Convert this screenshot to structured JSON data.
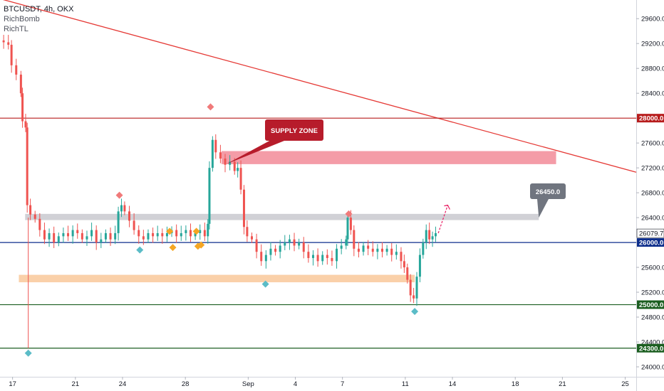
{
  "legend": {
    "symbol": "BTCUSDT, 4h, OKX",
    "indicators": [
      "RichBomb",
      "RichTL"
    ]
  },
  "chart_data": {
    "type": "candlestick",
    "y_ticks": [
      29600,
      29200,
      28800,
      28400,
      28000,
      27600,
      27200,
      26800,
      26400,
      26000,
      25600,
      25200,
      24800,
      24400,
      24000
    ],
    "y_tick_labels": [
      "29600.0",
      "29200.0",
      "28800.0",
      "28400.0",
      "28000.0",
      "27600.0",
      "27200.0",
      "26800.0",
      "26400.0",
      "26000.0",
      "25600.0",
      "25200.0",
      "24800.0",
      "24400.0",
      "24000.0"
    ],
    "ylim": [
      23840,
      29900
    ],
    "x_ticks": [
      {
        "label": "17",
        "day": 17
      },
      {
        "label": "21",
        "day": 21
      },
      {
        "label": "24",
        "day": 24
      },
      {
        "label": "28",
        "day": 28
      },
      {
        "label": "Sep",
        "day": 32
      },
      {
        "label": "4",
        "day": 35
      },
      {
        "label": "7",
        "day": 38
      },
      {
        "label": "11",
        "day": 42
      },
      {
        "label": "14",
        "day": 45
      },
      {
        "label": "18",
        "day": 49
      },
      {
        "label": "21",
        "day": 52
      },
      {
        "label": "25",
        "day": 56
      }
    ],
    "xlim": [
      16.2,
      56.7
    ],
    "horizontal_levels": [
      {
        "price": 28000,
        "label": "28000.0",
        "color": "#b71c1c"
      },
      {
        "price": 26000,
        "label": "26000.0",
        "color": "#0d2e8c"
      },
      {
        "price": 25000,
        "label": "25000.0",
        "color": "#1b5e20"
      },
      {
        "price": 24300,
        "label": "24300.0",
        "color": "#1b5e20"
      }
    ],
    "current_price": {
      "price": 26079.7,
      "label": "26079.7"
    },
    "trendline": {
      "from": {
        "day": 16.2,
        "price": 29920
      },
      "to": {
        "day": 56.7,
        "price": 27130
      },
      "color": "#e53935"
    },
    "zones": [
      {
        "name": "supply",
        "day_from": 30.3,
        "day_to": 51.6,
        "price_from": 27260,
        "price_to": 27470,
        "color": "#f28b98"
      },
      {
        "name": "resistance",
        "day_from": 17.8,
        "day_to": 50.5,
        "price_from": 26360,
        "price_to": 26460,
        "color": "#c9c9cf"
      },
      {
        "name": "support",
        "day_from": 17.4,
        "day_to": 42.6,
        "price_from": 25360,
        "price_to": 25480,
        "color": "#f9c89a"
      }
    ],
    "annotations": [
      {
        "text": "SUPPLY ZONE",
        "color": "#b71c2b",
        "text_color": "#ffffff"
      },
      {
        "text": "26450.0",
        "color": "#70757f",
        "text_color": "#ffffff"
      }
    ],
    "close_path": [
      [
        16.2,
        29250
      ],
      [
        16.5,
        29220
      ],
      [
        16.8,
        29180
      ],
      [
        17.0,
        28850
      ],
      [
        17.3,
        28700
      ],
      [
        17.6,
        28400
      ],
      [
        17.7,
        27950
      ],
      [
        17.9,
        27850
      ],
      [
        18.0,
        26600
      ],
      [
        18.2,
        26450
      ],
      [
        18.5,
        26380
      ],
      [
        18.8,
        26200
      ],
      [
        19.1,
        26050
      ],
      [
        19.4,
        26150
      ],
      [
        19.7,
        26000
      ],
      [
        20.0,
        26100
      ],
      [
        20.3,
        26150
      ],
      [
        20.6,
        26100
      ],
      [
        20.9,
        26200
      ],
      [
        21.2,
        26150
      ],
      [
        21.5,
        26050
      ],
      [
        21.8,
        26100
      ],
      [
        22.1,
        26200
      ],
      [
        22.4,
        26000
      ],
      [
        22.7,
        26050
      ],
      [
        23.0,
        26150
      ],
      [
        23.3,
        26050
      ],
      [
        23.6,
        26150
      ],
      [
        23.8,
        26500
      ],
      [
        24.0,
        26600
      ],
      [
        24.2,
        26500
      ],
      [
        24.5,
        26350
      ],
      [
        24.8,
        26200
      ],
      [
        25.1,
        26100
      ],
      [
        25.4,
        26050
      ],
      [
        25.7,
        26150
      ],
      [
        26.0,
        26100
      ],
      [
        26.3,
        26150
      ],
      [
        26.6,
        26100
      ],
      [
        26.9,
        26150
      ],
      [
        27.2,
        26200
      ],
      [
        27.5,
        26100
      ],
      [
        27.8,
        26150
      ],
      [
        28.1,
        26200
      ],
      [
        28.4,
        26100
      ],
      [
        28.7,
        26150
      ],
      [
        29.0,
        26200
      ],
      [
        29.3,
        26100
      ],
      [
        29.5,
        26300
      ],
      [
        29.6,
        27200
      ],
      [
        29.8,
        27650
      ],
      [
        30.0,
        27450
      ],
      [
        30.3,
        27350
      ],
      [
        30.6,
        27250
      ],
      [
        30.9,
        27300
      ],
      [
        31.2,
        27150
      ],
      [
        31.4,
        27200
      ],
      [
        31.6,
        26850
      ],
      [
        31.8,
        26250
      ],
      [
        32.0,
        26100
      ],
      [
        32.3,
        26050
      ],
      [
        32.6,
        25850
      ],
      [
        32.9,
        25700
      ],
      [
        33.2,
        25800
      ],
      [
        33.5,
        25900
      ],
      [
        33.8,
        25850
      ],
      [
        34.1,
        25950
      ],
      [
        34.4,
        26000
      ],
      [
        34.7,
        26050
      ],
      [
        35.0,
        25950
      ],
      [
        35.3,
        26000
      ],
      [
        35.6,
        25850
      ],
      [
        35.9,
        25750
      ],
      [
        36.2,
        25800
      ],
      [
        36.5,
        25700
      ],
      [
        36.8,
        25800
      ],
      [
        37.1,
        25750
      ],
      [
        37.4,
        25700
      ],
      [
        37.7,
        25900
      ],
      [
        38.0,
        25950
      ],
      [
        38.3,
        26050
      ],
      [
        38.4,
        26400
      ],
      [
        38.6,
        26200
      ],
      [
        38.8,
        25900
      ],
      [
        39.1,
        25850
      ],
      [
        39.4,
        25950
      ],
      [
        39.7,
        25900
      ],
      [
        40.0,
        25850
      ],
      [
        40.3,
        25900
      ],
      [
        40.6,
        25850
      ],
      [
        40.9,
        25900
      ],
      [
        41.2,
        25800
      ],
      [
        41.5,
        25850
      ],
      [
        41.8,
        25700
      ],
      [
        42.0,
        25600
      ],
      [
        42.2,
        25400
      ],
      [
        42.4,
        25150
      ],
      [
        42.6,
        25100
      ],
      [
        42.8,
        25450
      ],
      [
        43.0,
        25800
      ],
      [
        43.2,
        26000
      ],
      [
        43.4,
        26200
      ],
      [
        43.6,
        26050
      ],
      [
        43.8,
        26100
      ],
      [
        44.0,
        26150
      ]
    ],
    "markers": [
      {
        "shape": "diamond",
        "day": 18.0,
        "price": 24220,
        "color": "#5bbcc7"
      },
      {
        "shape": "diamond",
        "day": 23.8,
        "price": 26760,
        "color": "#f07a7a"
      },
      {
        "shape": "diamond",
        "day": 25.1,
        "price": 25880,
        "color": "#5bbcc7"
      },
      {
        "shape": "diamond",
        "day": 27.0,
        "price": 26180,
        "color": "#f5a623"
      },
      {
        "shape": "diamond",
        "day": 27.2,
        "price": 25920,
        "color": "#f5a623"
      },
      {
        "shape": "diamond",
        "day": 28.7,
        "price": 26180,
        "color": "#f5a623"
      },
      {
        "shape": "diamond",
        "day": 28.8,
        "price": 25940,
        "color": "#f5a623"
      },
      {
        "shape": "diamond",
        "day": 29.0,
        "price": 25960,
        "color": "#f5a623"
      },
      {
        "shape": "diamond",
        "day": 29.6,
        "price": 28180,
        "color": "#f07a7a"
      },
      {
        "shape": "diamond",
        "day": 33.1,
        "price": 25330,
        "color": "#5bbcc7"
      },
      {
        "shape": "diamond",
        "day": 38.4,
        "price": 26460,
        "color": "#f07a7a"
      },
      {
        "shape": "diamond",
        "day": 42.6,
        "price": 24890,
        "color": "#5bbcc7"
      }
    ]
  }
}
